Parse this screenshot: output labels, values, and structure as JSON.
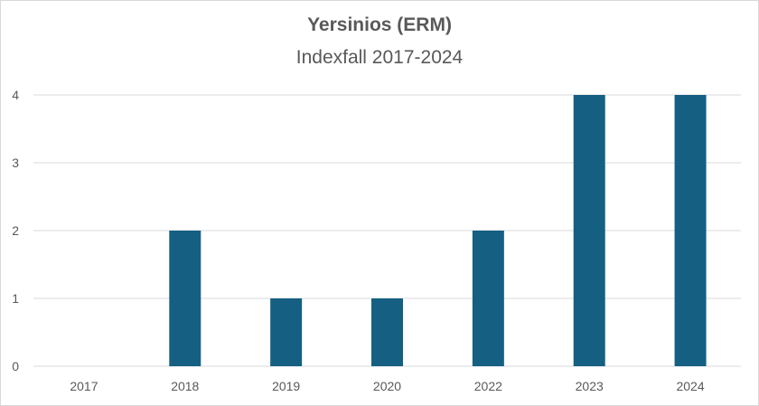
{
  "chart_data": {
    "type": "bar",
    "title": "Yersinios (ERM)",
    "subtitle": "Indexfall 2017-2024",
    "categories": [
      "2017",
      "2018",
      "2019",
      "2020",
      "2022",
      "2023",
      "2024"
    ],
    "values": [
      0,
      2,
      1,
      1,
      2,
      4,
      4
    ],
    "ylim": [
      0,
      4
    ],
    "yticks": [
      "0",
      "1",
      "2",
      "3",
      "4"
    ],
    "xlabel": "",
    "ylabel": "",
    "grid": true,
    "bar_color": "#155f83",
    "grid_color": "#d9d9d9"
  }
}
